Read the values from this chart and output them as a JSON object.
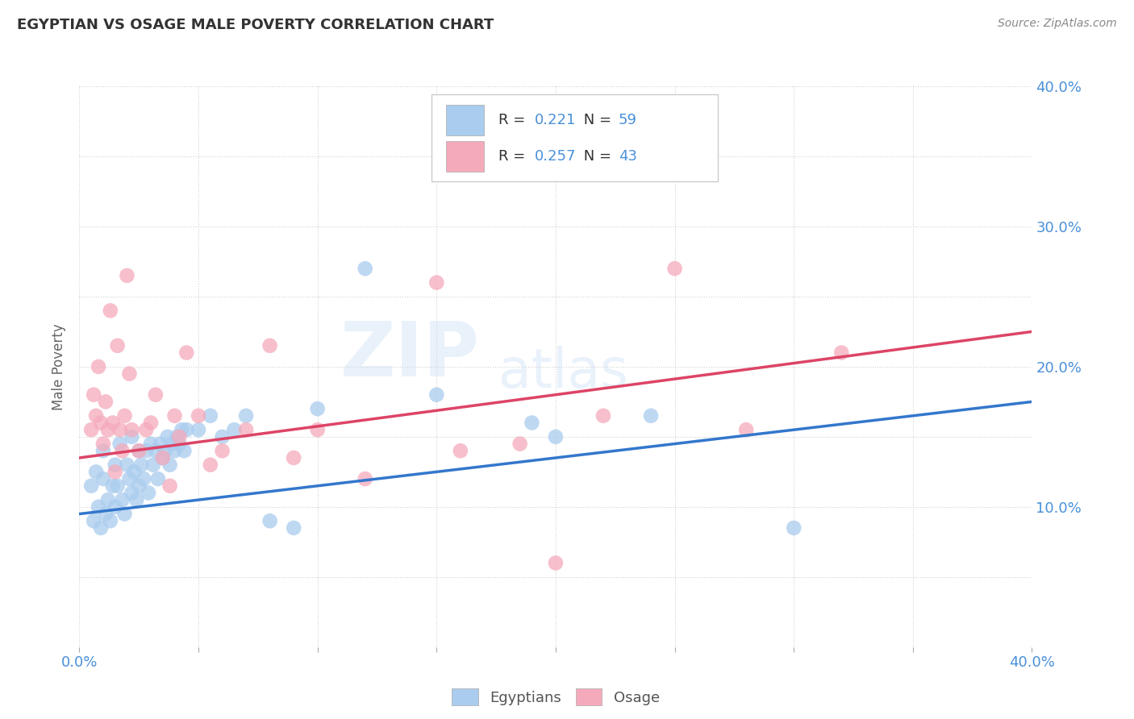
{
  "title": "EGYPTIAN VS OSAGE MALE POVERTY CORRELATION CHART",
  "source_text": "Source: ZipAtlas.com",
  "ylabel": "Male Poverty",
  "xlim": [
    0.0,
    0.4
  ],
  "ylim": [
    0.0,
    0.4
  ],
  "xticks": [
    0.0,
    0.05,
    0.1,
    0.15,
    0.2,
    0.25,
    0.3,
    0.35,
    0.4
  ],
  "yticks": [
    0.0,
    0.05,
    0.1,
    0.15,
    0.2,
    0.25,
    0.3,
    0.35,
    0.4
  ],
  "xticklabels": [
    "0.0%",
    "",
    "",
    "",
    "",
    "",
    "",
    "",
    "40.0%"
  ],
  "yticklabels_right": [
    "",
    "",
    "10.0%",
    "",
    "20.0%",
    "",
    "30.0%",
    "",
    "40.0%"
  ],
  "egyptian_color": "#aaccee",
  "osage_color": "#f5aabb",
  "egyptian_line_color": "#3377cc",
  "osage_line_color": "#dd4466",
  "r_egyptian": 0.221,
  "n_egyptian": 59,
  "r_osage": 0.257,
  "n_osage": 43,
  "watermark_zip": "ZIP",
  "watermark_atlas": "atlas",
  "background_color": "#ffffff",
  "grid_color": "#cccccc",
  "legend_text_color": "#4a90d9",
  "reg_line_e_x0": 0.0,
  "reg_line_e_y0": 0.095,
  "reg_line_e_x1": 0.4,
  "reg_line_e_y1": 0.175,
  "reg_line_o_x0": 0.0,
  "reg_line_o_y0": 0.135,
  "reg_line_o_x1": 0.4,
  "reg_line_o_y1": 0.225,
  "egyptian_x": [
    0.005,
    0.006,
    0.007,
    0.008,
    0.009,
    0.01,
    0.01,
    0.011,
    0.012,
    0.013,
    0.014,
    0.015,
    0.015,
    0.016,
    0.017,
    0.018,
    0.019,
    0.02,
    0.021,
    0.022,
    0.022,
    0.023,
    0.024,
    0.025,
    0.025,
    0.026,
    0.027,
    0.028,
    0.029,
    0.03,
    0.031,
    0.032,
    0.033,
    0.034,
    0.035,
    0.036,
    0.037,
    0.038,
    0.039,
    0.04,
    0.041,
    0.042,
    0.043,
    0.044,
    0.045,
    0.05,
    0.055,
    0.06,
    0.065,
    0.07,
    0.08,
    0.09,
    0.1,
    0.12,
    0.15,
    0.19,
    0.2,
    0.24,
    0.3
  ],
  "egyptian_y": [
    0.115,
    0.09,
    0.125,
    0.1,
    0.085,
    0.12,
    0.14,
    0.095,
    0.105,
    0.09,
    0.115,
    0.13,
    0.1,
    0.115,
    0.145,
    0.105,
    0.095,
    0.13,
    0.12,
    0.11,
    0.15,
    0.125,
    0.105,
    0.14,
    0.115,
    0.13,
    0.12,
    0.14,
    0.11,
    0.145,
    0.13,
    0.14,
    0.12,
    0.145,
    0.135,
    0.14,
    0.15,
    0.13,
    0.145,
    0.14,
    0.15,
    0.145,
    0.155,
    0.14,
    0.155,
    0.155,
    0.165,
    0.15,
    0.155,
    0.165,
    0.09,
    0.085,
    0.17,
    0.27,
    0.18,
    0.16,
    0.15,
    0.165,
    0.085
  ],
  "osage_x": [
    0.005,
    0.006,
    0.007,
    0.008,
    0.009,
    0.01,
    0.011,
    0.012,
    0.013,
    0.014,
    0.015,
    0.016,
    0.017,
    0.018,
    0.019,
    0.02,
    0.021,
    0.022,
    0.025,
    0.028,
    0.03,
    0.032,
    0.035,
    0.038,
    0.04,
    0.042,
    0.045,
    0.05,
    0.055,
    0.06,
    0.07,
    0.08,
    0.09,
    0.1,
    0.12,
    0.15,
    0.16,
    0.185,
    0.2,
    0.22,
    0.25,
    0.28,
    0.32
  ],
  "osage_y": [
    0.155,
    0.18,
    0.165,
    0.2,
    0.16,
    0.145,
    0.175,
    0.155,
    0.24,
    0.16,
    0.125,
    0.215,
    0.155,
    0.14,
    0.165,
    0.265,
    0.195,
    0.155,
    0.14,
    0.155,
    0.16,
    0.18,
    0.135,
    0.115,
    0.165,
    0.15,
    0.21,
    0.165,
    0.13,
    0.14,
    0.155,
    0.215,
    0.135,
    0.155,
    0.12,
    0.26,
    0.14,
    0.145,
    0.06,
    0.165,
    0.27,
    0.155,
    0.21
  ]
}
